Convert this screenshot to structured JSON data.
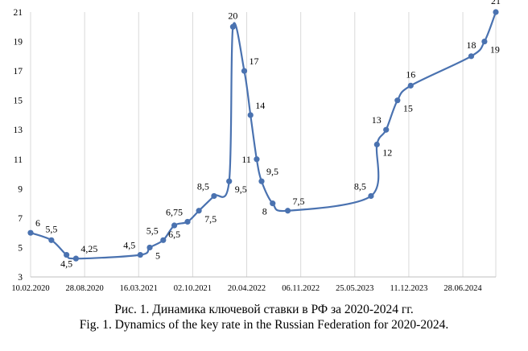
{
  "chart_data": {
    "type": "line",
    "title": "",
    "xlabel": "",
    "ylabel": "",
    "ylim": [
      3,
      21
    ],
    "y_ticks": [
      "3",
      "5",
      "7",
      "9",
      "11",
      "13",
      "15",
      "17",
      "19",
      "21"
    ],
    "x_range": [
      "2020-02-10",
      "2024-10-28"
    ],
    "x_ticks": [
      {
        "date": "2020-02-10",
        "label": "10.02.2020"
      },
      {
        "date": "2020-08-28",
        "label": "28.08.2020"
      },
      {
        "date": "2021-03-16",
        "label": "16.03.2021"
      },
      {
        "date": "2021-10-02",
        "label": "02.10.2021"
      },
      {
        "date": "2022-04-20",
        "label": "20.04.2022"
      },
      {
        "date": "2022-11-06",
        "label": "06.11.2022"
      },
      {
        "date": "2023-05-25",
        "label": "25.05.2023"
      },
      {
        "date": "2023-12-11",
        "label": "11.12.2023"
      },
      {
        "date": "2024-06-28",
        "label": "28.06.2024"
      }
    ],
    "grid": "vertical",
    "legend": "none",
    "series": [
      {
        "color": "#4a72b0",
        "points": [
          {
            "x": "2020-02-10",
            "y": 6,
            "label": "6",
            "label_pos": "ne"
          },
          {
            "x": "2020-04-27",
            "y": 5.5,
            "label": "5,5",
            "label_pos": "n"
          },
          {
            "x": "2020-06-22",
            "y": 4.5,
            "label": "4,5",
            "label_pos": "s"
          },
          {
            "x": "2020-07-27",
            "y": 4.25,
            "label": "4,25",
            "label_pos": "ne"
          },
          {
            "x": "2021-03-22",
            "y": 4.5,
            "label": "4,5",
            "label_pos": "nw"
          },
          {
            "x": "2021-04-26",
            "y": 5,
            "label": "5",
            "label_pos": "se"
          },
          {
            "x": "2021-06-15",
            "y": 5.5,
            "label": "5,5",
            "label_pos": "nw"
          },
          {
            "x": "2021-07-26",
            "y": 6.5,
            "label": "6,5",
            "label_pos": "s"
          },
          {
            "x": "2021-09-13",
            "y": 6.75,
            "label": "6,75",
            "label_pos": "nw"
          },
          {
            "x": "2021-10-25",
            "y": 7.5,
            "label": "7,5",
            "label_pos": "se"
          },
          {
            "x": "2021-12-20",
            "y": 8.5,
            "label": "8,5",
            "label_pos": "nw"
          },
          {
            "x": "2022-02-14",
            "y": 9.5,
            "label": "9,5",
            "label_pos": "se"
          },
          {
            "x": "2022-02-28",
            "y": 20,
            "label": "20",
            "label_pos": "n"
          },
          {
            "x": "2022-04-11",
            "y": 17,
            "label": "17",
            "label_pos": "ne"
          },
          {
            "x": "2022-05-04",
            "y": 14,
            "label": "14",
            "label_pos": "ne"
          },
          {
            "x": "2022-05-27",
            "y": 11,
            "label": "11",
            "label_pos": "w"
          },
          {
            "x": "2022-06-14",
            "y": 9.5,
            "label": "9,5",
            "label_pos": "ne"
          },
          {
            "x": "2022-07-25",
            "y": 8,
            "label": "8",
            "label_pos": "sw"
          },
          {
            "x": "2022-09-19",
            "y": 7.5,
            "label": "7,5",
            "label_pos": "ne"
          },
          {
            "x": "2023-07-24",
            "y": 8.5,
            "label": "8,5",
            "label_pos": "nw"
          },
          {
            "x": "2023-08-15",
            "y": 12,
            "label": "12",
            "label_pos": "se"
          },
          {
            "x": "2023-09-18",
            "y": 13,
            "label": "13",
            "label_pos": "nw"
          },
          {
            "x": "2023-10-30",
            "y": 15,
            "label": "15",
            "label_pos": "se"
          },
          {
            "x": "2023-12-18",
            "y": 16,
            "label": "16",
            "label_pos": "n"
          },
          {
            "x": "2024-07-29",
            "y": 18,
            "label": "18",
            "label_pos": "n"
          },
          {
            "x": "2024-09-16",
            "y": 19,
            "label": "19",
            "label_pos": "se"
          },
          {
            "x": "2024-10-28",
            "y": 21,
            "label": "21",
            "label_pos": "n"
          }
        ]
      }
    ]
  },
  "caption": {
    "ru": "Рис. 1. Динамика ключевой ставки в РФ за 2020-2024 гг.",
    "en": "Fig. 1. Dynamics of the key rate in the Russian Federation for 2020-2024."
  }
}
